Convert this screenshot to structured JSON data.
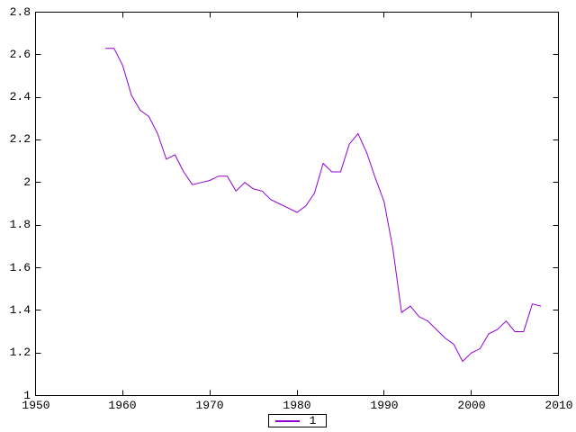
{
  "figure": {
    "background": "#ffffff",
    "axis_color": "#000000",
    "text_color": "#000000"
  },
  "chart_data": {
    "type": "line",
    "title": "",
    "xlabel": "",
    "ylabel": "",
    "x_range": [
      1950,
      2010
    ],
    "y_range": [
      1,
      2.8
    ],
    "x_tick_labels": [
      "1950",
      "1960",
      "1970",
      "1980",
      "1990",
      "2000",
      "2010"
    ],
    "y_tick_labels": [
      "1",
      "1.2",
      "1.4",
      "1.6",
      "1.8",
      "2",
      "2.2",
      "2.4",
      "2.6",
      "2.8"
    ],
    "grid": false,
    "legend": {
      "position": "bottom-center-outside",
      "entries": [
        {
          "label": "1",
          "color": "#9400d3"
        }
      ]
    },
    "series": [
      {
        "name": "1",
        "color": "#9400d3",
        "x": [
          1958,
          1959,
          1960,
          1961,
          1962,
          1963,
          1964,
          1965,
          1966,
          1967,
          1968,
          1969,
          1970,
          1971,
          1972,
          1973,
          1974,
          1975,
          1976,
          1977,
          1978,
          1979,
          1980,
          1981,
          1982,
          1983,
          1984,
          1985,
          1986,
          1987,
          1988,
          1989,
          1990,
          1991,
          1992,
          1993,
          1994,
          1995,
          1996,
          1997,
          1998,
          1999,
          2000,
          2001,
          2002,
          2003,
          2004,
          2005,
          2006,
          2007,
          2008
        ],
        "y": [
          2.63,
          2.63,
          2.55,
          2.41,
          2.34,
          2.31,
          2.23,
          2.11,
          2.13,
          2.05,
          1.99,
          2.0,
          2.01,
          2.03,
          2.03,
          1.96,
          2.0,
          1.97,
          1.96,
          1.92,
          1.9,
          1.88,
          1.86,
          1.89,
          1.95,
          2.09,
          2.05,
          2.05,
          2.18,
          2.23,
          2.14,
          2.02,
          1.91,
          1.69,
          1.39,
          1.42,
          1.37,
          1.35,
          1.31,
          1.27,
          1.24,
          1.16,
          1.2,
          1.22,
          1.29,
          1.31,
          1.35,
          1.3,
          1.3,
          1.43,
          1.42
        ]
      }
    ]
  }
}
